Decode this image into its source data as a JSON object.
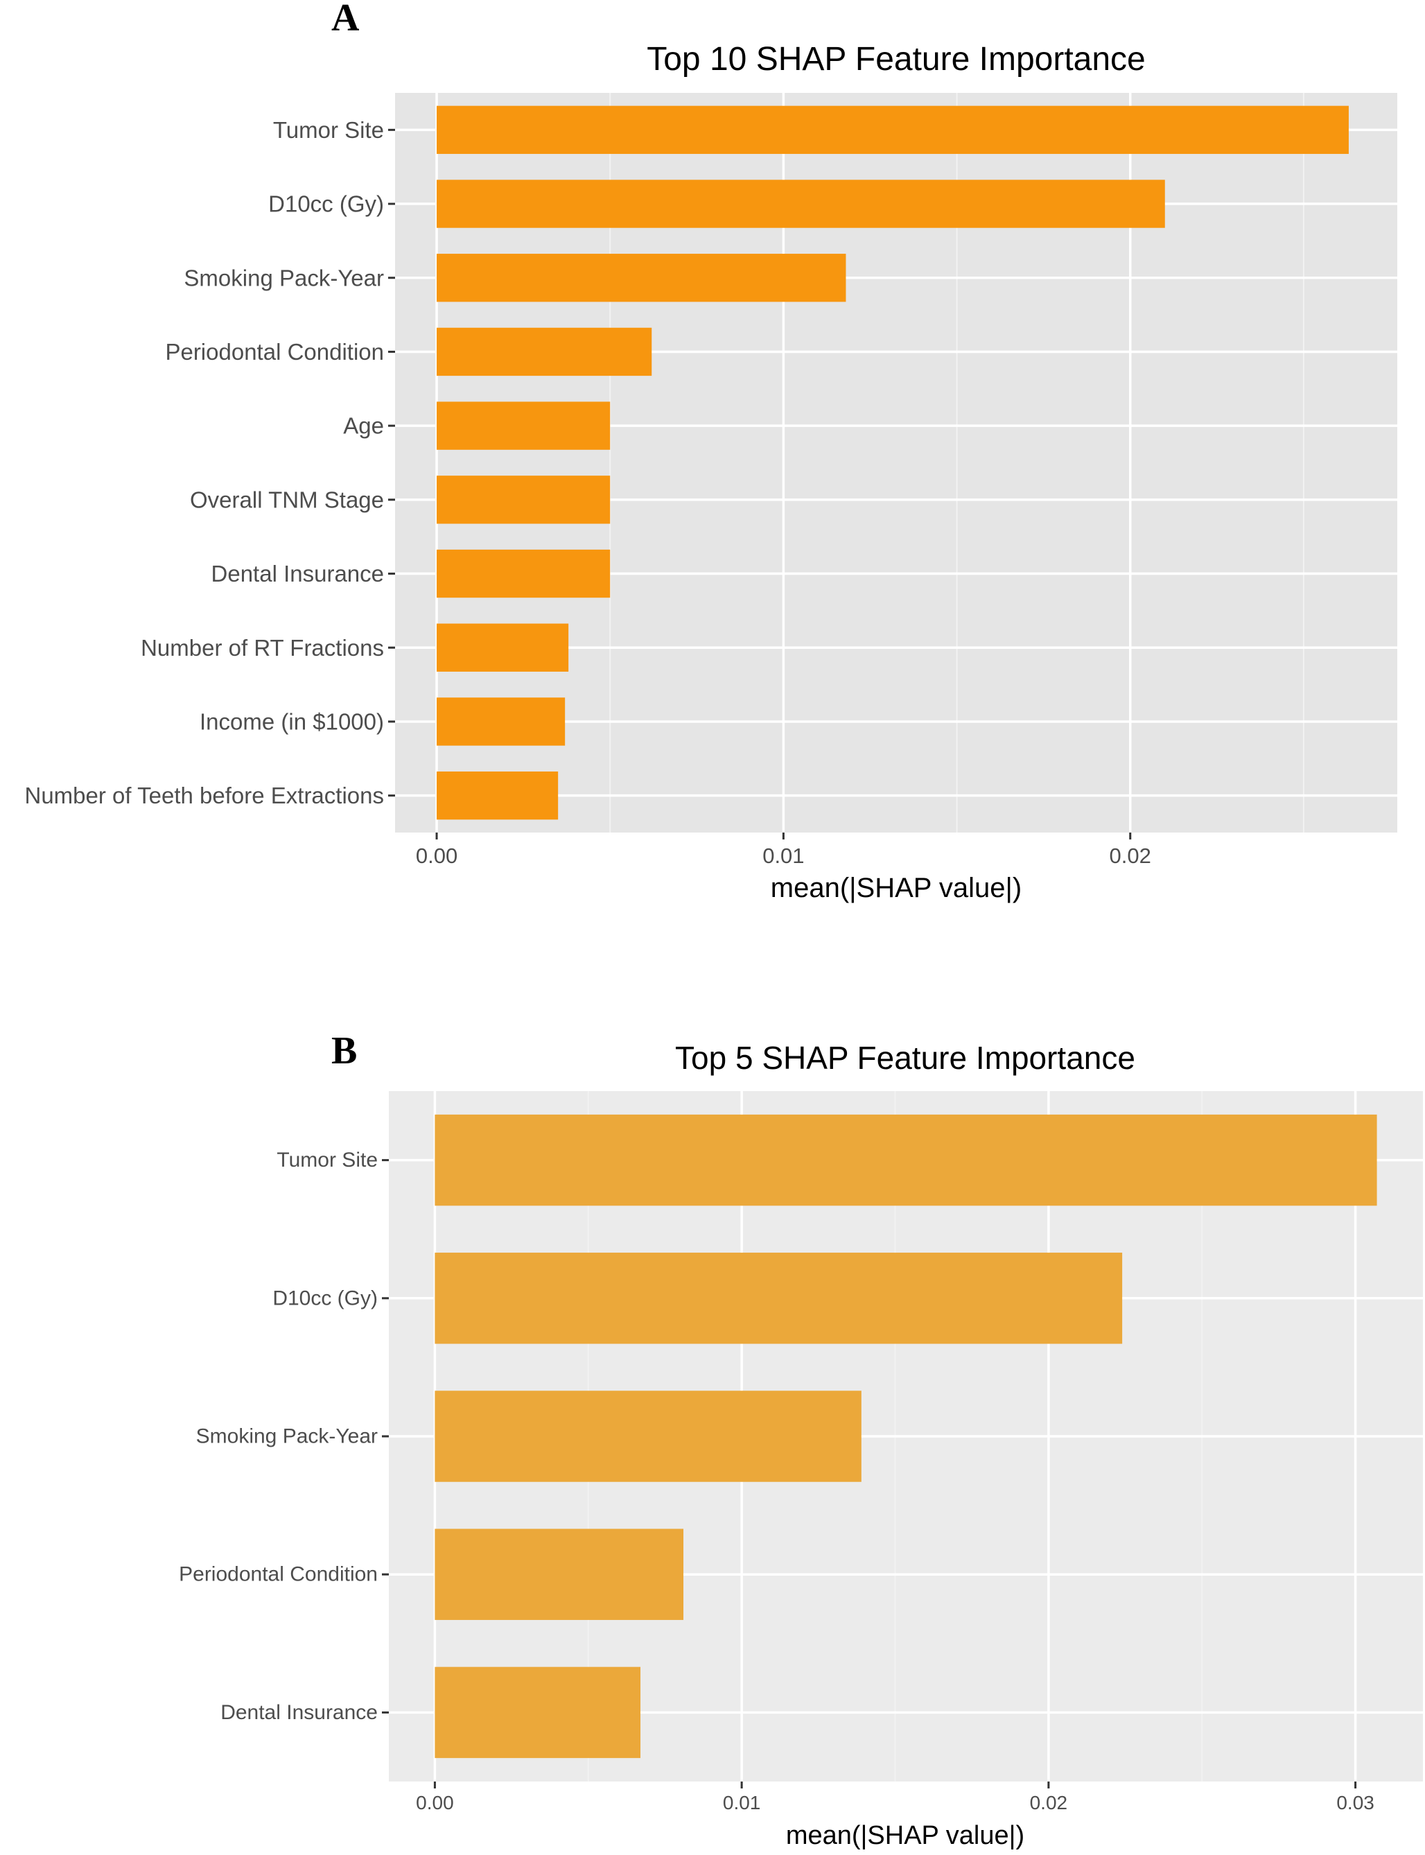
{
  "chart_data": [
    {
      "panel": "A",
      "type": "bar",
      "orientation": "horizontal",
      "title": "Top 10 SHAP Feature Importance",
      "xlabel": "mean(|SHAP value|)",
      "ylabel": "",
      "categories": [
        "Tumor Site",
        "D10cc (Gy)",
        "Smoking Pack-Year",
        "Periodontal Condition",
        "Age",
        "Overall TNM Stage",
        "Dental Insurance",
        "Number of RT Fractions",
        "Income (in $1000)",
        "Number of Teeth before Extractions"
      ],
      "values": [
        0.0263,
        0.021,
        0.0118,
        0.0062,
        0.005,
        0.005,
        0.005,
        0.0038,
        0.0037,
        0.0035
      ],
      "xlim": [
        -0.0012,
        0.0277
      ],
      "xticks": [
        0.0,
        0.01,
        0.02
      ],
      "xtick_labels": [
        "0.00",
        "0.01",
        "0.02"
      ],
      "bar_color": "#f7960f",
      "panel_bg": "#e5e5e5",
      "grid": true
    },
    {
      "panel": "B",
      "type": "bar",
      "orientation": "horizontal",
      "title": "Top 5 SHAP Feature Importance",
      "xlabel": "mean(|SHAP value|)",
      "ylabel": "",
      "categories": [
        "Tumor Site",
        "D10cc (Gy)",
        "Smoking Pack-Year",
        "Periodontal Condition",
        "Dental Insurance"
      ],
      "values": [
        0.0307,
        0.0224,
        0.0139,
        0.0081,
        0.0067
      ],
      "xlim": [
        -0.0015,
        0.0322
      ],
      "xticks": [
        0.0,
        0.01,
        0.02,
        0.03
      ],
      "xtick_labels": [
        "0.00",
        "0.01",
        "0.02",
        "0.03"
      ],
      "bar_color": "#eba83a",
      "panel_bg": "#ebebeb",
      "grid": true
    }
  ]
}
